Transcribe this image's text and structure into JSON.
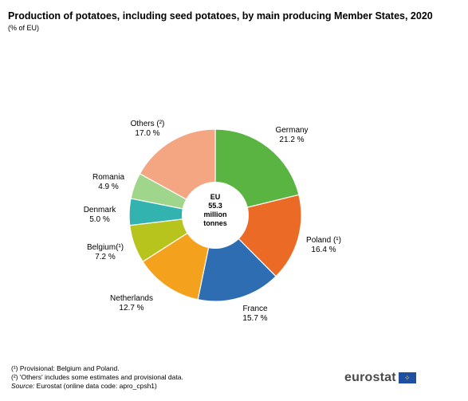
{
  "chart_data": {
    "type": "pie",
    "title": "Production of potatoes, including seed potatoes, by main producing Member States, 2020",
    "subtitle": "(% of EU)",
    "center_label": [
      "EU",
      "55.3",
      "million",
      "tonnes"
    ],
    "slices": [
      {
        "name": "Germany",
        "display_name": "Germany",
        "value": 21.2,
        "label": "21.2 %",
        "color": "#5ab441"
      },
      {
        "name": "Poland",
        "display_name": "Poland (¹)",
        "value": 16.4,
        "label": "16.4 %",
        "color": "#ea6a26"
      },
      {
        "name": "France",
        "display_name": "France",
        "value": 15.7,
        "label": "15.7 %",
        "color": "#2f6db3"
      },
      {
        "name": "Netherlands",
        "display_name": "Netherlands",
        "value": 12.7,
        "label": "12.7 %",
        "color": "#f4a11e"
      },
      {
        "name": "Belgium",
        "display_name": "Belgium(¹)",
        "value": 7.2,
        "label": "7.2 %",
        "color": "#b8c41e"
      },
      {
        "name": "Denmark",
        "display_name": "Denmark",
        "value": 5.0,
        "label": "5.0 %",
        "color": "#33b3b0"
      },
      {
        "name": "Romania",
        "display_name": "Romania",
        "value": 4.9,
        "label": "4.9 %",
        "color": "#9fd68c"
      },
      {
        "name": "Others",
        "display_name": "Others (²)",
        "value": 17.0,
        "label": "17.0 %",
        "color": "#f4a582"
      }
    ]
  },
  "footnotes": {
    "note1": "(¹) Provisional: Belgium and Poland.",
    "note2": "(²) 'Others' includes some estimates and provisional data.",
    "source_prefix": "Source:",
    "source_text": " Eurostat (online data code: apro_cpsh1)"
  },
  "logo": {
    "text": "eurostat",
    "flag_color": "#1f4fa3",
    "stars_color": "#ffcc00"
  }
}
